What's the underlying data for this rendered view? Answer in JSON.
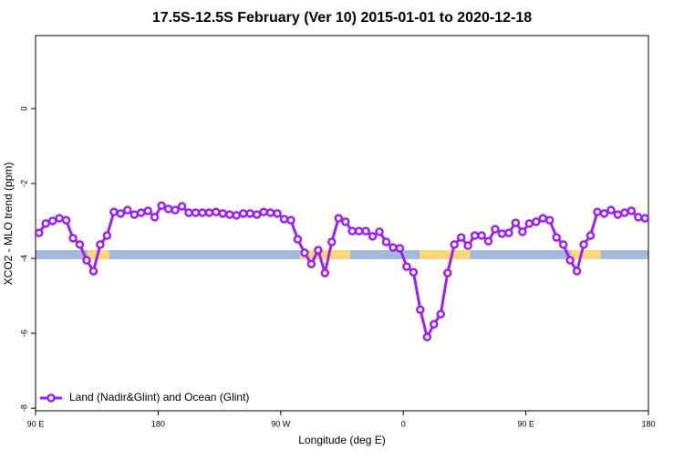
{
  "chart_data": {
    "type": "line",
    "title": "17.5S-12.5S February (Ver 10)   2015-01-01 to 2020-12-18",
    "x_label": "Longitude (deg E)",
    "y_label": "XCO2 - MLO trend (ppm)",
    "x": [
      92.5,
      97.5,
      102.5,
      107.5,
      112.5,
      117.5,
      122.5,
      127.5,
      132.5,
      137.5,
      142.5,
      147.5,
      152.5,
      157.5,
      162.5,
      167.5,
      172.5,
      177.5,
      182.5,
      187.5,
      192.5,
      197.5,
      202.5,
      207.5,
      212.5,
      217.5,
      222.5,
      227.5,
      232.5,
      237.5,
      242.5,
      247.5,
      252.5,
      257.5,
      262.5,
      267.5,
      272.5,
      277.5,
      282.5,
      287.5,
      292.5,
      297.5,
      302.5,
      307.5,
      312.5,
      317.5,
      322.5,
      327.5,
      332.5,
      337.5,
      342.5,
      347.5,
      352.5,
      357.5,
      362.5,
      367.5,
      372.5,
      377.5,
      382.5,
      387.5,
      392.5,
      397.5,
      402.5,
      407.5,
      412.5,
      417.5,
      422.5,
      427.5,
      432.5,
      437.5,
      442.5,
      447.5,
      452.5,
      457.5,
      462.5,
      467.5,
      472.5,
      477.5,
      482.5,
      487.5,
      492.5,
      497.5,
      502.5,
      507.5,
      512.5,
      517.5,
      522.5,
      527.5,
      532.5,
      537.5
    ],
    "series": [
      {
        "name": "Land (Nadir&Glint) and Ocean (Glint)",
        "color": "#a020f0",
        "values": [
          -3.32,
          -3.07,
          -3.0,
          -2.93,
          -2.98,
          -3.46,
          -3.63,
          -4.05,
          -4.34,
          -3.63,
          -3.39,
          -2.76,
          -2.8,
          -2.71,
          -2.83,
          -2.78,
          -2.73,
          -2.9,
          -2.59,
          -2.68,
          -2.71,
          -2.61,
          -2.78,
          -2.78,
          -2.78,
          -2.78,
          -2.76,
          -2.8,
          -2.83,
          -2.85,
          -2.8,
          -2.8,
          -2.83,
          -2.76,
          -2.78,
          -2.8,
          -2.95,
          -2.98,
          -3.49,
          -3.85,
          -4.15,
          -3.78,
          -4.39,
          -3.56,
          -2.93,
          -3.02,
          -3.27,
          -3.27,
          -3.27,
          -3.41,
          -3.29,
          -3.56,
          -3.71,
          -3.73,
          -4.22,
          -4.37,
          -5.37,
          -6.1,
          -5.76,
          -5.49,
          -4.39,
          -3.63,
          -3.44,
          -3.66,
          -3.39,
          -3.39,
          -3.54,
          -3.22,
          -3.34,
          -3.32,
          -3.05,
          -3.29,
          -3.07,
          -3.02,
          -2.93,
          -2.98,
          -3.44,
          -3.63,
          -4.05,
          -4.34,
          -3.63,
          -3.39,
          -2.76,
          -2.8,
          -2.71,
          -2.83,
          -2.78,
          -2.73,
          -2.9,
          -2.93
        ]
      }
    ],
    "band": {
      "ylim": [
        -4.02,
        -3.78
      ],
      "ocean_color": "#a3b9dc",
      "land_color": "#fad778",
      "land": [
        [
          128,
          144
        ],
        [
          284,
          321
        ],
        [
          372,
          409
        ],
        [
          483,
          505
        ]
      ]
    },
    "xlim": [
      90,
      540
    ],
    "ylim": [
      -8.07,
      1.95
    ],
    "xticks": [
      {
        "value": 90,
        "label": "90 E"
      },
      180,
      {
        "value": 270,
        "label": "90 W"
      },
      {
        "value": 360,
        "label": "0"
      },
      {
        "value": 450,
        "label": "90 E"
      },
      {
        "value": 540,
        "label": "180"
      }
    ],
    "yticks": [
      0,
      -2,
      -4,
      -6,
      -8
    ],
    "legend": "bottom-left"
  }
}
